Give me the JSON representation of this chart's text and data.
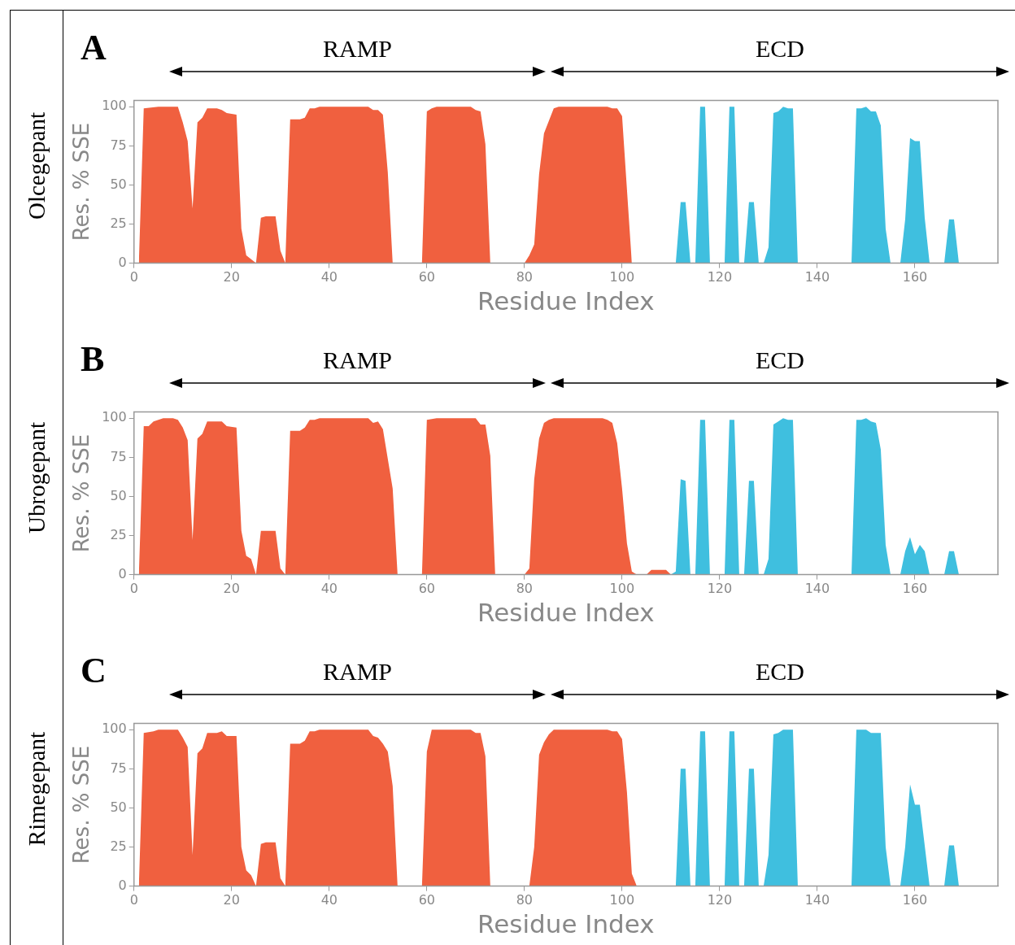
{
  "chart_data": [
    {
      "type": "area",
      "title": "Olcegepant",
      "annotations": [
        "A",
        "RAMP",
        "ECD"
      ],
      "xlabel": "Residue Index",
      "ylabel": "Res. % SSE",
      "xlim": [
        0,
        177
      ],
      "xticks": [
        0,
        20,
        40,
        60,
        80,
        100,
        120,
        140,
        160
      ],
      "ylim": [
        0,
        104
      ],
      "yticks": [
        0,
        25,
        50,
        75,
        100
      ],
      "grid": false,
      "legend": false,
      "marker": "none",
      "series": [
        {
          "color": "#f0603f",
          "x": [
            1,
            2,
            5,
            9,
            10,
            11,
            12,
            13,
            14,
            15,
            17,
            18,
            19,
            21,
            22,
            23,
            25,
            26,
            27,
            29,
            30,
            31,
            32,
            34,
            35,
            36,
            37,
            38,
            48,
            49,
            50,
            51,
            52,
            53,
            59,
            60,
            61,
            62,
            69,
            70,
            71,
            72,
            73,
            80,
            81,
            82,
            83,
            84,
            86,
            87,
            97,
            98,
            99,
            100,
            101,
            102
          ],
          "values": [
            0,
            99,
            100,
            100,
            90,
            78,
            35,
            90,
            93,
            99,
            99,
            98,
            96,
            95,
            22,
            5,
            0,
            29,
            30,
            30,
            8,
            0,
            92,
            92,
            93,
            99,
            99,
            100,
            100,
            98,
            98,
            95,
            58,
            0,
            0,
            97,
            99,
            100,
            100,
            98,
            97,
            76,
            0,
            0,
            5,
            12,
            57,
            83,
            99,
            100,
            100,
            99,
            99,
            94,
            47,
            0
          ]
        },
        {
          "color": "#3fbfdf",
          "x": [
            111,
            112,
            113,
            114,
            115,
            116,
            117,
            118,
            121,
            122,
            123,
            124,
            125,
            126,
            127,
            128,
            129,
            130,
            131,
            132,
            133,
            134,
            135,
            136,
            147,
            148,
            149,
            150,
            151,
            152,
            153,
            154,
            155,
            157,
            158,
            159,
            160,
            161,
            162,
            163,
            166,
            167,
            168,
            169
          ],
          "values": [
            0,
            39,
            39,
            0,
            0,
            100,
            100,
            0,
            0,
            100,
            100,
            0,
            0,
            39,
            39,
            0,
            0,
            10,
            96,
            97,
            100,
            99,
            99,
            0,
            0,
            99,
            99,
            100,
            97,
            97,
            88,
            22,
            0,
            0,
            28,
            80,
            78,
            78,
            29,
            0,
            0,
            28,
            28,
            0
          ]
        }
      ]
    },
    {
      "type": "area",
      "title": "Ubrogepant",
      "annotations": [
        "B",
        "RAMP",
        "ECD"
      ],
      "xlabel": "Residue Index",
      "ylabel": "Res. % SSE",
      "xlim": [
        0,
        177
      ],
      "xticks": [
        0,
        20,
        40,
        60,
        80,
        100,
        120,
        140,
        160
      ],
      "ylim": [
        0,
        104
      ],
      "yticks": [
        0,
        25,
        50,
        75,
        100
      ],
      "grid": false,
      "legend": false,
      "marker": "none",
      "series": [
        {
          "color": "#f0603f",
          "x": [
            1,
            2,
            3,
            4,
            5,
            6,
            8,
            9,
            10,
            11,
            12,
            13,
            14,
            15,
            17,
            18,
            19,
            21,
            22,
            23,
            24,
            25,
            26,
            29,
            30,
            31,
            32,
            34,
            35,
            36,
            37,
            38,
            48,
            49,
            50,
            51,
            53,
            54,
            59,
            60,
            62,
            70,
            71,
            72,
            73,
            74,
            80,
            81,
            82,
            83,
            84,
            85,
            86,
            96,
            97,
            98,
            99,
            100,
            101,
            102,
            103,
            105,
            106,
            109,
            110
          ],
          "values": [
            0,
            95,
            95,
            98,
            99,
            100,
            100,
            99,
            94,
            86,
            22,
            87,
            90,
            98,
            98,
            98,
            95,
            94,
            28,
            12,
            10,
            0,
            28,
            28,
            4,
            0,
            92,
            92,
            94,
            99,
            99,
            100,
            100,
            97,
            98,
            93,
            55,
            0,
            0,
            99,
            100,
            100,
            96,
            96,
            76,
            0,
            0,
            4,
            61,
            87,
            97,
            99,
            100,
            100,
            99,
            97,
            84,
            55,
            20,
            2,
            0,
            0,
            3,
            3,
            0
          ]
        },
        {
          "color": "#3fbfdf",
          "x": [
            110,
            111,
            112,
            113,
            114,
            115,
            116,
            117,
            118,
            121,
            122,
            123,
            124,
            125,
            126,
            127,
            128,
            129,
            130,
            131,
            132,
            133,
            134,
            135,
            136,
            147,
            148,
            149,
            150,
            151,
            152,
            153,
            154,
            155,
            157,
            158,
            159,
            160,
            161,
            162,
            163,
            166,
            167,
            168,
            169
          ],
          "values": [
            0,
            2,
            61,
            60,
            0,
            0,
            99,
            99,
            0,
            0,
            99,
            99,
            0,
            0,
            60,
            60,
            0,
            0,
            10,
            96,
            98,
            100,
            99,
            99,
            0,
            0,
            99,
            99,
            100,
            98,
            97,
            80,
            19,
            0,
            0,
            15,
            24,
            13,
            19,
            15,
            0,
            0,
            15,
            15,
            0
          ]
        }
      ]
    },
    {
      "type": "area",
      "title": "Rimegepant",
      "annotations": [
        "C",
        "RAMP",
        "ECD"
      ],
      "xlabel": "Residue Index",
      "ylabel": "Res. % SSE",
      "xlim": [
        0,
        177
      ],
      "xticks": [
        0,
        20,
        40,
        60,
        80,
        100,
        120,
        140,
        160
      ],
      "ylim": [
        0,
        104
      ],
      "yticks": [
        0,
        25,
        50,
        75,
        100
      ],
      "grid": false,
      "legend": false,
      "marker": "none",
      "series": [
        {
          "color": "#f0603f",
          "x": [
            1,
            2,
            4,
            5,
            9,
            10,
            11,
            12,
            13,
            14,
            15,
            17,
            18,
            19,
            21,
            22,
            23,
            24,
            25,
            26,
            27,
            29,
            30,
            31,
            32,
            34,
            35,
            36,
            37,
            38,
            48,
            49,
            50,
            51,
            52,
            53,
            54,
            59,
            60,
            61,
            63,
            69,
            70,
            71,
            72,
            73,
            81,
            82,
            83,
            84,
            85,
            86,
            97,
            98,
            99,
            100,
            101,
            102,
            103
          ],
          "values": [
            0,
            98,
            99,
            100,
            100,
            95,
            89,
            20,
            85,
            88,
            98,
            98,
            99,
            96,
            96,
            25,
            10,
            7,
            0,
            27,
            28,
            28,
            5,
            0,
            91,
            91,
            93,
            99,
            99,
            100,
            100,
            96,
            95,
            91,
            86,
            64,
            0,
            0,
            86,
            100,
            100,
            100,
            98,
            98,
            83,
            0,
            0,
            25,
            84,
            92,
            97,
            100,
            100,
            99,
            99,
            94,
            60,
            8,
            0
          ]
        },
        {
          "color": "#3fbfdf",
          "x": [
            111,
            112,
            113,
            114,
            115,
            116,
            117,
            118,
            121,
            122,
            123,
            124,
            125,
            126,
            127,
            128,
            129,
            130,
            131,
            132,
            133,
            135,
            136,
            147,
            148,
            150,
            151,
            153,
            154,
            155,
            157,
            158,
            159,
            160,
            161,
            163,
            166,
            167,
            168,
            169
          ],
          "values": [
            0,
            75,
            75,
            0,
            0,
            99,
            99,
            0,
            0,
            99,
            99,
            0,
            0,
            75,
            75,
            0,
            0,
            20,
            97,
            98,
            100,
            100,
            0,
            0,
            100,
            100,
            98,
            98,
            25,
            0,
            0,
            25,
            65,
            52,
            52,
            0,
            0,
            26,
            26,
            0
          ]
        }
      ]
    }
  ]
}
